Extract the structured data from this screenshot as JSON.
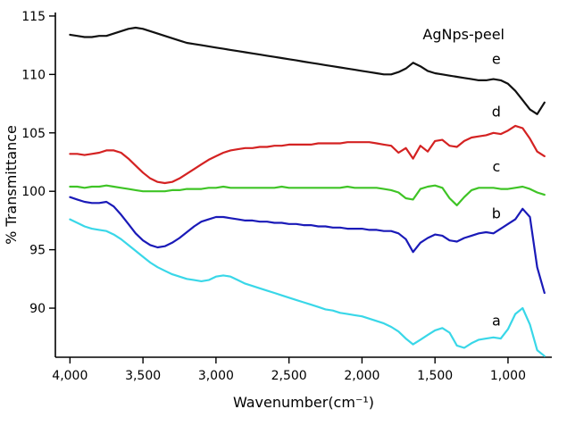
{
  "chart_data": {
    "type": "line",
    "title": "AgNps-peel",
    "xlabel": "Wavenumber(cm⁻¹)",
    "ylabel": "% Transmittance",
    "xlim": [
      4100,
      700
    ],
    "ylim": [
      85.8,
      115.3
    ],
    "x_axis_reversed": true,
    "grid": false,
    "legend_position": "none",
    "x_ticks": [
      {
        "v": 4000,
        "label": "4,000"
      },
      {
        "v": 3500,
        "label": "3,500"
      },
      {
        "v": 3000,
        "label": "3,000"
      },
      {
        "v": 2500,
        "label": "2,500"
      },
      {
        "v": 2000,
        "label": "2,000"
      },
      {
        "v": 1500,
        "label": "1,500"
      },
      {
        "v": 1000,
        "label": "1,000"
      }
    ],
    "y_ticks": [
      {
        "v": 90,
        "label": "90"
      },
      {
        "v": 95,
        "label": "95"
      },
      {
        "v": 100,
        "label": "100"
      },
      {
        "v": 105,
        "label": "105"
      },
      {
        "v": 110,
        "label": "110"
      },
      {
        "v": 115,
        "label": "115"
      }
    ],
    "x": [
      4000,
      3950,
      3900,
      3850,
      3800,
      3750,
      3700,
      3650,
      3600,
      3550,
      3500,
      3450,
      3400,
      3350,
      3300,
      3250,
      3200,
      3150,
      3100,
      3050,
      3000,
      2950,
      2900,
      2850,
      2800,
      2750,
      2700,
      2650,
      2600,
      2550,
      2500,
      2450,
      2400,
      2350,
      2300,
      2250,
      2200,
      2150,
      2100,
      2050,
      2000,
      1950,
      1900,
      1850,
      1800,
      1750,
      1700,
      1650,
      1600,
      1550,
      1500,
      1450,
      1400,
      1350,
      1300,
      1250,
      1200,
      1150,
      1100,
      1050,
      1000,
      950,
      900,
      850,
      800,
      750
    ],
    "series": [
      {
        "name": "e",
        "color": "#111111",
        "values": [
          113.4,
          113.3,
          113.2,
          113.2,
          113.3,
          113.3,
          113.5,
          113.7,
          113.9,
          114.0,
          113.9,
          113.7,
          113.5,
          113.3,
          113.1,
          112.9,
          112.7,
          112.6,
          112.5,
          112.4,
          112.3,
          112.2,
          112.1,
          112.0,
          111.9,
          111.8,
          111.7,
          111.6,
          111.5,
          111.4,
          111.3,
          111.2,
          111.1,
          111.0,
          110.9,
          110.8,
          110.7,
          110.6,
          110.5,
          110.4,
          110.3,
          110.2,
          110.1,
          110.0,
          110.0,
          110.2,
          110.5,
          111.0,
          110.7,
          110.3,
          110.1,
          110.0,
          109.9,
          109.8,
          109.7,
          109.6,
          109.5,
          109.5,
          109.6,
          109.5,
          109.2,
          108.6,
          107.8,
          107.0,
          106.6,
          107.6
        ]
      },
      {
        "name": "d",
        "color": "#d42222",
        "values": [
          103.2,
          103.2,
          103.1,
          103.2,
          103.3,
          103.5,
          103.5,
          103.3,
          102.8,
          102.2,
          101.6,
          101.1,
          100.8,
          100.7,
          100.8,
          101.1,
          101.5,
          101.9,
          102.3,
          102.7,
          103.0,
          103.3,
          103.5,
          103.6,
          103.7,
          103.7,
          103.8,
          103.8,
          103.9,
          103.9,
          104.0,
          104.0,
          104.0,
          104.0,
          104.1,
          104.1,
          104.1,
          104.1,
          104.2,
          104.2,
          104.2,
          104.2,
          104.1,
          104.0,
          103.9,
          103.3,
          103.7,
          102.8,
          103.9,
          103.4,
          104.3,
          104.4,
          103.9,
          103.8,
          104.3,
          104.6,
          104.7,
          104.8,
          105.0,
          104.9,
          105.2,
          105.6,
          105.4,
          104.5,
          103.4,
          103.0
        ]
      },
      {
        "name": "c",
        "color": "#3fc426",
        "values": [
          100.4,
          100.4,
          100.3,
          100.4,
          100.4,
          100.5,
          100.4,
          100.3,
          100.2,
          100.1,
          100.0,
          100.0,
          100.0,
          100.0,
          100.1,
          100.1,
          100.2,
          100.2,
          100.2,
          100.3,
          100.3,
          100.4,
          100.3,
          100.3,
          100.3,
          100.3,
          100.3,
          100.3,
          100.3,
          100.4,
          100.3,
          100.3,
          100.3,
          100.3,
          100.3,
          100.3,
          100.3,
          100.3,
          100.4,
          100.3,
          100.3,
          100.3,
          100.3,
          100.2,
          100.1,
          99.9,
          99.4,
          99.3,
          100.2,
          100.4,
          100.5,
          100.3,
          99.4,
          98.8,
          99.5,
          100.1,
          100.3,
          100.3,
          100.3,
          100.2,
          100.2,
          100.3,
          100.4,
          100.2,
          99.9,
          99.7
        ]
      },
      {
        "name": "b",
        "color": "#1a1ab8",
        "values": [
          99.5,
          99.3,
          99.1,
          99.0,
          99.0,
          99.1,
          98.7,
          98.0,
          97.2,
          96.4,
          95.8,
          95.4,
          95.2,
          95.3,
          95.6,
          96.0,
          96.5,
          97.0,
          97.4,
          97.6,
          97.8,
          97.8,
          97.7,
          97.6,
          97.5,
          97.5,
          97.4,
          97.4,
          97.3,
          97.3,
          97.2,
          97.2,
          97.1,
          97.1,
          97.0,
          97.0,
          96.9,
          96.9,
          96.8,
          96.8,
          96.8,
          96.7,
          96.7,
          96.6,
          96.6,
          96.4,
          95.9,
          94.8,
          95.6,
          96.0,
          96.3,
          96.2,
          95.8,
          95.7,
          96.0,
          96.2,
          96.4,
          96.5,
          96.4,
          96.8,
          97.2,
          97.6,
          98.5,
          97.8,
          93.5,
          91.3
        ]
      },
      {
        "name": "a",
        "color": "#39d7e8",
        "values": [
          97.6,
          97.3,
          97.0,
          96.8,
          96.7,
          96.6,
          96.3,
          95.9,
          95.4,
          94.9,
          94.4,
          93.9,
          93.5,
          93.2,
          92.9,
          92.7,
          92.5,
          92.4,
          92.3,
          92.4,
          92.7,
          92.8,
          92.7,
          92.4,
          92.1,
          91.9,
          91.7,
          91.5,
          91.3,
          91.1,
          90.9,
          90.7,
          90.5,
          90.3,
          90.1,
          89.9,
          89.8,
          89.6,
          89.5,
          89.4,
          89.3,
          89.1,
          88.9,
          88.7,
          88.4,
          88.0,
          87.4,
          86.9,
          87.3,
          87.7,
          88.1,
          88.3,
          87.9,
          86.8,
          86.6,
          87.0,
          87.3,
          87.4,
          87.5,
          87.4,
          88.2,
          89.5,
          90.0,
          88.6,
          86.4,
          85.9
        ]
      }
    ],
    "curve_labels": [
      {
        "text": "e",
        "x": 1080,
        "y": 110.9
      },
      {
        "text": "d",
        "x": 1080,
        "y": 106.4
      },
      {
        "text": "c",
        "x": 1080,
        "y": 101.7
      },
      {
        "text": "b",
        "x": 1080,
        "y": 97.7
      },
      {
        "text": "a",
        "x": 1080,
        "y": 88.5
      }
    ]
  }
}
